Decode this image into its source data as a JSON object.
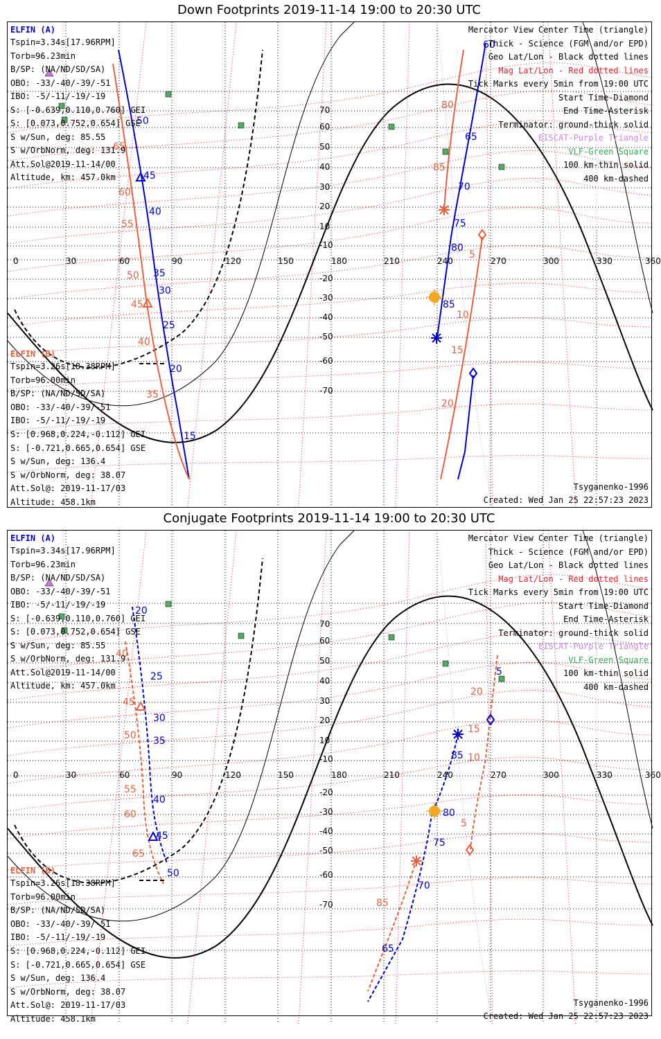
{
  "panels": [
    {
      "title": "Down Footprints 2019-11-14 19:00 to 20:30 UTC",
      "ticks_a": [
        "50",
        "45",
        "40",
        "35",
        "30",
        "25",
        "20",
        "15",
        "60",
        "65",
        "70",
        "75",
        "80",
        "85"
      ],
      "ticks_b": [
        "65",
        "60",
        "55",
        "50",
        "45",
        "40",
        "35",
        "80",
        "85",
        "5",
        "10",
        "15",
        "20"
      ],
      "lat_labels": [
        "70",
        "60",
        "50",
        "40",
        "30",
        "20",
        "10",
        "-10",
        "-20",
        "-30",
        "-40",
        "-50",
        "-60",
        "-70"
      ],
      "lon_labels": [
        "0",
        "30",
        "60",
        "90",
        "120",
        "150",
        "180",
        "210",
        "240",
        "270",
        "300",
        "330",
        "360"
      ]
    },
    {
      "title": "Conjugate Footprints 2019-11-14 19:00 to 20:30 UTC",
      "ticks_a": [
        "20",
        "25",
        "30",
        "35",
        "40",
        "45",
        "50",
        "5",
        "85",
        "80",
        "75",
        "70",
        "65"
      ],
      "ticks_b": [
        "40",
        "45",
        "50",
        "55",
        "60",
        "65",
        "20",
        "15",
        "10",
        "5",
        "85"
      ],
      "lat_labels": [
        "70",
        "60",
        "50",
        "40",
        "30",
        "20",
        "10",
        "-10",
        "-20",
        "-30",
        "-40",
        "-50",
        "-60",
        "-70"
      ],
      "lon_labels": [
        "0",
        "30",
        "60",
        "90",
        "120",
        "150",
        "180",
        "210",
        "240",
        "270",
        "300",
        "330",
        "360"
      ]
    }
  ],
  "elfin_a": {
    "header": "ELFIN (A)",
    "lines": [
      "Tspin=3.34s[17.96RPM]",
      "Torb=96.23min",
      "B/SP: (NA/ND/SD/SA)",
      "OBO: -33/-40/-39/-51",
      "IBO: -5/-11/-19/-19",
      "S: [-0.639,0.110,0.760] GEI",
      "S: [0.073,0.752,0.654] GSE",
      "S w/Sun, deg: 85.55",
      "S w/OrbNorm, deg: 131.9",
      "Att.Sol@2019-11-14/00",
      "Altitude, km: 457.0km"
    ]
  },
  "elfin_b": {
    "header": "ELFIN (B)",
    "lines": [
      "Tspin=3.26s[18.38RPM]",
      "Torb=96.00min",
      "B/SP: (NA/ND/SD/SA)",
      "OBO: -33/-40/-39/-51",
      "IBO: -5/-11/-19/-19",
      "S: [0.968,0.224,-0.112] GEI",
      "S: [-0.721,0.665,0.654] GSE",
      "S w/Sun, deg: 136.4",
      "S w/OrbNorm, deg: 38.07",
      "Att.Sol@: 2019-11-17/03",
      "Altitude: 458.1km"
    ]
  },
  "legend": [
    {
      "text": "Mercator View Center Time (triangle)",
      "color": "#000000"
    },
    {
      "text": "Thick - Science (FGM and/or EPD)",
      "color": "#000000"
    },
    {
      "text": "Geo Lat/Lon - Black dotted lines",
      "color": "#000000"
    },
    {
      "text": "Mag Lat/Lon - Red dotted lines",
      "color": "#e8202c"
    },
    {
      "text": "Tick Marks every 5min from 19:00 UTC",
      "color": "#000000"
    },
    {
      "text": "Start Time-Diamond",
      "color": "#000000"
    },
    {
      "text": "End Time-Asterisk",
      "color": "#000000"
    },
    {
      "text": "Terminator: ground-thick solid",
      "color": "#000000"
    },
    {
      "text": "EISCAT-Purple Triangle",
      "color": "#cc88ee"
    },
    {
      "text": "VLF-Green Square",
      "color": "#33aa55"
    },
    {
      "text": "100 km-thin solid",
      "color": "#000000"
    },
    {
      "text": "400 km-dashed",
      "color": "#000000"
    }
  ],
  "footer": {
    "model": "Tsyganenko-1996",
    "created": "Created: Wed Jan 25 22:57:23 2023"
  },
  "colors": {
    "elfin_a": "#0000cc",
    "elfin_b": "#e8613c",
    "mag_grid": "#e8202c",
    "sun": "#f5a623"
  }
}
